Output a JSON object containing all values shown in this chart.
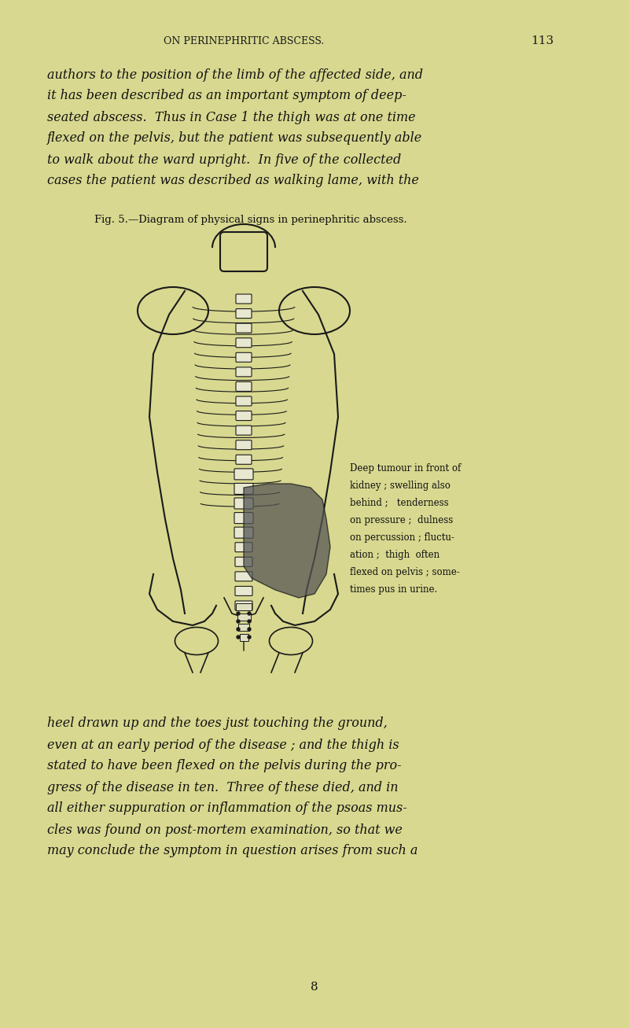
{
  "background_color": "#d9d99a",
  "page_bg": "#d4d48a",
  "text_color": "#1a1a1a",
  "page_width": 8.0,
  "page_height": 13.07,
  "header_text": "ON PERINEPHRITIC ABSCESS.",
  "page_number": "113",
  "top_paragraph": "authors to the position of the limb of the affected side, and\nit has been described as an important symptom of deep-\nseated abscess.  Thus in Case 1 the thigh was at one time\nflexed on the pelvis, but the patient was subsequently able\nto walk about the ward upright.  In five of the collected\ncases the patient was described as walking lame, with the",
  "fig_caption": "Fig. 5.—Diagram of physical signs in perinephritic abscess.",
  "annotation_text": "Deep tumour in front of\nkidney ; swelling also\nbehind ;   tenderness\non pressure ;  dulness\non percussion ; fluctu-\nation ;  thigh  often\nflexed on pelvis ; some-\ntimes pus in urine.",
  "bottom_paragraph": "heel drawn up and the toes just touching the ground,\neven at an early period of the disease ; and the thigh is\nstated to have been flexed on the pelvis during the pro-\ngress of the disease in ten.  Three of these died, and in\nall either suppuration or inflammation of the psoas mus-\ncles was found on post-mortem examination, so that we\nmay conclude the symptom in question arises from such a",
  "footer_number": "8",
  "bg_color": "#d8d88e"
}
